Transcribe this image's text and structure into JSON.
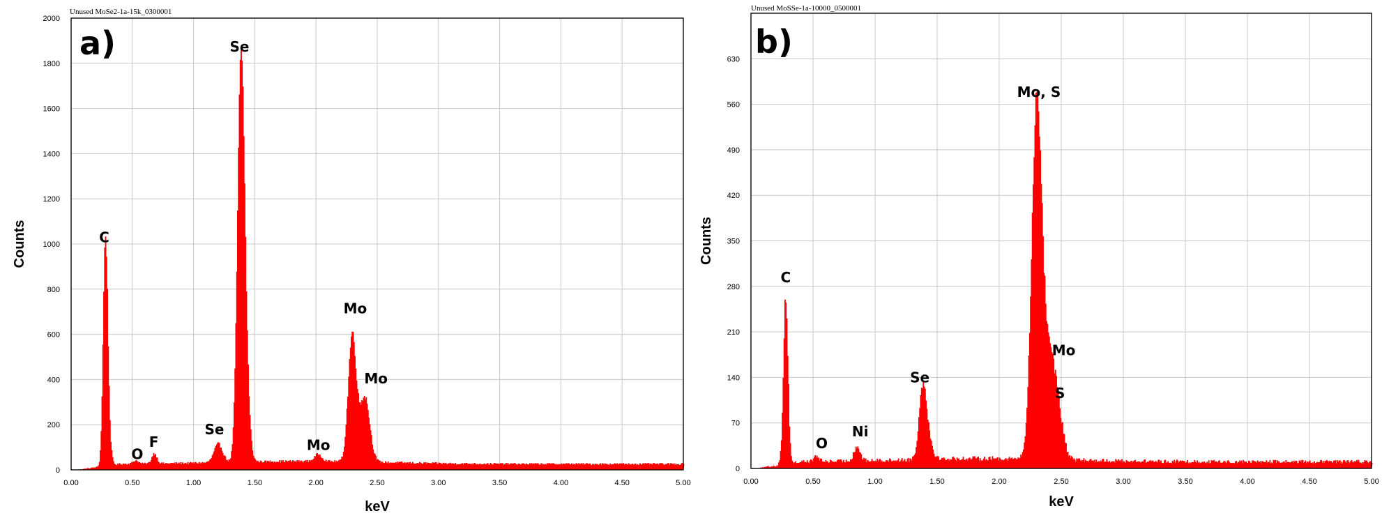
{
  "chart_data": [
    {
      "type": "area",
      "panel_letter": "a)",
      "file_label": "Unused MoSe2-1a-15k_0300001",
      "xlabel": "keV",
      "ylabel": "Counts",
      "xlim": [
        0,
        5
      ],
      "ylim": [
        0,
        2000
      ],
      "x_ticks": [
        "0.00",
        "0.50",
        "1.00",
        "1.50",
        "2.00",
        "2.50",
        "3.00",
        "3.50",
        "4.00",
        "4.50",
        "5.00"
      ],
      "y_ticks": [
        "0",
        "200",
        "400",
        "600",
        "800",
        "1000",
        "1200",
        "1400",
        "1600",
        "1800",
        "2000"
      ],
      "grid": true,
      "color": "#ff0000",
      "background_counts": 25,
      "peaks": [
        {
          "x": 0.277,
          "height": 960,
          "width": 0.018
        },
        {
          "x": 0.3,
          "height": 120,
          "width": 0.02
        },
        {
          "x": 0.525,
          "height": 15,
          "width": 0.02
        },
        {
          "x": 0.677,
          "height": 45,
          "width": 0.02
        },
        {
          "x": 1.2,
          "height": 80,
          "width": 0.035
        },
        {
          "x": 1.383,
          "height": 1640,
          "width": 0.028
        },
        {
          "x": 1.419,
          "height": 350,
          "width": 0.03
        },
        {
          "x": 2.016,
          "height": 30,
          "width": 0.03
        },
        {
          "x": 2.293,
          "height": 560,
          "width": 0.032
        },
        {
          "x": 2.395,
          "height": 290,
          "width": 0.04
        }
      ],
      "peak_labels": [
        {
          "text": "C",
          "x": 0.27,
          "y": 995
        },
        {
          "text": "O",
          "x": 0.54,
          "y": 35
        },
        {
          "text": "F",
          "x": 0.675,
          "y": 90
        },
        {
          "text": "Se",
          "x": 1.17,
          "y": 145
        },
        {
          "text": "Se",
          "x": 1.375,
          "y": 1840
        },
        {
          "text": "Mo",
          "x": 2.02,
          "y": 75
        },
        {
          "text": "Mo",
          "x": 2.32,
          "y": 680
        },
        {
          "text": "Mo",
          "x": 2.49,
          "y": 370
        }
      ]
    },
    {
      "type": "area",
      "panel_letter": "b)",
      "file_label": "Unused MoSSe-1a-10000_0500001",
      "xlabel": "keV",
      "ylabel": "Counts",
      "xlim": [
        0,
        5
      ],
      "ylim": [
        0,
        700
      ],
      "x_ticks": [
        "0.00",
        "0.50",
        "1.00",
        "1.50",
        "2.00",
        "2.50",
        "3.00",
        "3.50",
        "4.00",
        "4.50",
        "5.00"
      ],
      "y_ticks": [
        "0",
        "70",
        "140",
        "210",
        "280",
        "350",
        "420",
        "490",
        "560",
        "630"
      ],
      "grid": true,
      "color": "#ff0000",
      "background_counts": 10,
      "peaks": [
        {
          "x": 0.277,
          "height": 258,
          "width": 0.018
        },
        {
          "x": 0.525,
          "height": 8,
          "width": 0.02
        },
        {
          "x": 0.851,
          "height": 22,
          "width": 0.025
        },
        {
          "x": 1.383,
          "height": 112,
          "width": 0.03
        },
        {
          "x": 1.43,
          "height": 20,
          "width": 0.035
        },
        {
          "x": 2.3,
          "height": 550,
          "width": 0.04
        },
        {
          "x": 2.395,
          "height": 140,
          "width": 0.045
        },
        {
          "x": 2.464,
          "height": 70,
          "width": 0.045
        }
      ],
      "peak_labels": [
        {
          "text": "C",
          "x": 0.28,
          "y": 282
        },
        {
          "text": "O",
          "x": 0.57,
          "y": 27
        },
        {
          "text": "Ni",
          "x": 0.88,
          "y": 45
        },
        {
          "text": "Se",
          "x": 1.36,
          "y": 128
        },
        {
          "text": "Mo, S",
          "x": 2.32,
          "y": 567
        },
        {
          "text": "Mo",
          "x": 2.52,
          "y": 170
        },
        {
          "text": "S",
          "x": 2.49,
          "y": 104
        }
      ]
    }
  ]
}
